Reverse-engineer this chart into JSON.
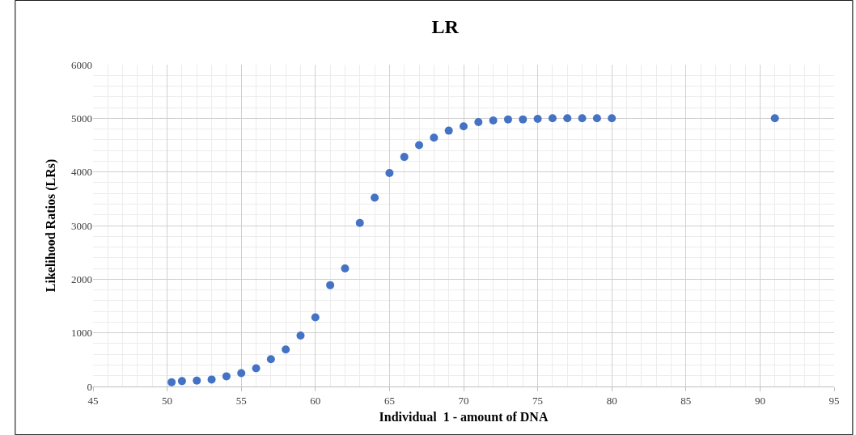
{
  "chart_data": {
    "type": "scatter",
    "title": "LR",
    "xlabel": "Individual  1 - amount of DNA",
    "ylabel": "Likelihood Ratios (LRs)",
    "x": [
      50.3,
      51,
      52,
      53,
      54,
      55,
      56,
      57,
      58,
      59,
      60,
      61,
      62,
      63,
      64,
      65,
      66,
      67,
      68,
      69,
      70,
      71,
      72,
      73,
      74,
      75,
      76,
      77,
      78,
      79,
      80,
      91
    ],
    "series": [
      {
        "color": "#4472c4",
        "values": [
          80,
          100,
          110,
          130,
          190,
          250,
          340,
          510,
          690,
          950,
          1290,
          1890,
          2200,
          3050,
          3520,
          3980,
          4280,
          4500,
          4640,
          4770,
          4850,
          4930,
          4960,
          4980,
          4980,
          4990,
          5000,
          5000,
          5000,
          5000,
          5000,
          5000
        ]
      }
    ],
    "xlim": [
      45,
      95
    ],
    "xticks": [
      45,
      50,
      55,
      60,
      65,
      70,
      75,
      80,
      85,
      90,
      95
    ],
    "ylim": [
      0,
      6000
    ],
    "yticks": [
      0,
      1000,
      2000,
      3000,
      4000,
      5000,
      6000
    ],
    "grid": true,
    "marker": "circle"
  }
}
